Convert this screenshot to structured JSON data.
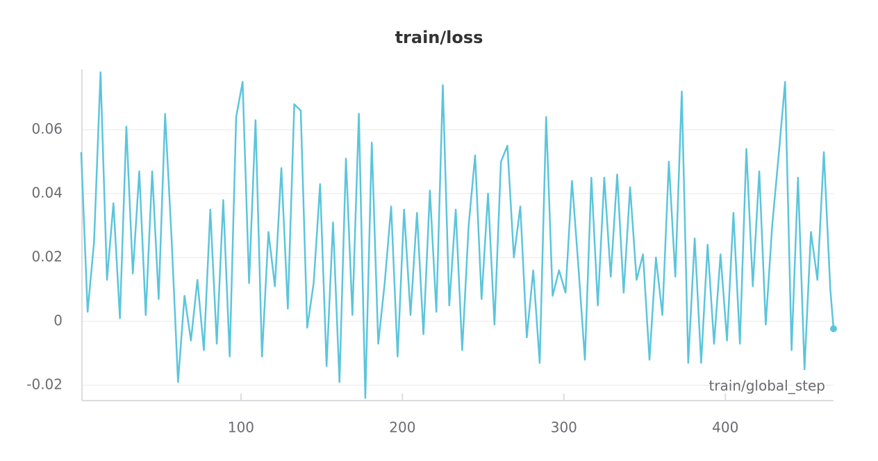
{
  "chart_data": {
    "type": "line",
    "title": "train/loss",
    "x_label": "train/global_step",
    "xlim": [
      1.5,
      467
    ],
    "xticks": [
      100,
      200,
      300,
      400
    ],
    "ylim": [
      -0.0248,
      0.0789
    ],
    "yticks": [
      -0.02,
      0,
      0.02,
      0.04,
      0.06
    ],
    "grid": true,
    "x": [
      1,
      5,
      9,
      13,
      17,
      21,
      25,
      29,
      33,
      37,
      41,
      45,
      49,
      53,
      57,
      61,
      65,
      69,
      73,
      77,
      81,
      85,
      89,
      93,
      97,
      101,
      105,
      109,
      113,
      117,
      121,
      125,
      129,
      133,
      137,
      141,
      145,
      149,
      153,
      157,
      161,
      165,
      169,
      173,
      177,
      181,
      185,
      189,
      193,
      197,
      201,
      205,
      209,
      213,
      217,
      221,
      225,
      229,
      233,
      237,
      241,
      245,
      249,
      253,
      257,
      261,
      265,
      269,
      273,
      277,
      281,
      285,
      289,
      293,
      297,
      301,
      305,
      309,
      313,
      317,
      321,
      325,
      329,
      333,
      337,
      341,
      345,
      349,
      353,
      357,
      361,
      365,
      369,
      373,
      377,
      381,
      385,
      389,
      393,
      397,
      401,
      405,
      409,
      413,
      417,
      421,
      425,
      429,
      433,
      437,
      441,
      445,
      449,
      453,
      457,
      461,
      465,
      467
    ],
    "series": [
      {
        "name": "train/loss",
        "color": "#5bc5db",
        "values": [
          0.053,
          0.003,
          0.025,
          0.078,
          0.013,
          0.037,
          0.001,
          0.061,
          0.015,
          0.047,
          0.002,
          0.047,
          0.007,
          0.065,
          0.026,
          -0.019,
          0.008,
          -0.006,
          0.013,
          -0.009,
          0.035,
          -0.007,
          0.038,
          -0.011,
          0.064,
          0.075,
          0.012,
          0.063,
          -0.011,
          0.028,
          0.011,
          0.048,
          0.004,
          0.068,
          0.066,
          -0.002,
          0.012,
          0.043,
          -0.014,
          0.031,
          -0.019,
          0.051,
          0.002,
          0.065,
          -0.024,
          0.056,
          -0.007,
          0.012,
          0.036,
          -0.011,
          0.035,
          0.002,
          0.034,
          -0.004,
          0.041,
          0.003,
          0.074,
          0.005,
          0.035,
          -0.009,
          0.03,
          0.052,
          0.007,
          0.04,
          -0.001,
          0.05,
          0.055,
          0.02,
          0.036,
          -0.005,
          0.016,
          -0.013,
          0.064,
          0.008,
          0.016,
          0.009,
          0.044,
          0.017,
          -0.012,
          0.045,
          0.005,
          0.045,
          0.014,
          0.046,
          0.009,
          0.042,
          0.013,
          0.021,
          -0.012,
          0.02,
          0.002,
          0.05,
          0.014,
          0.072,
          -0.013,
          0.026,
          -0.013,
          0.024,
          -0.007,
          0.021,
          -0.006,
          0.034,
          -0.007,
          0.054,
          0.011,
          0.047,
          -0.001,
          0.03,
          0.052,
          0.075,
          -0.009,
          0.045,
          -0.015,
          0.028,
          0.013,
          0.053,
          0.01,
          -0.0023
        ]
      }
    ]
  }
}
